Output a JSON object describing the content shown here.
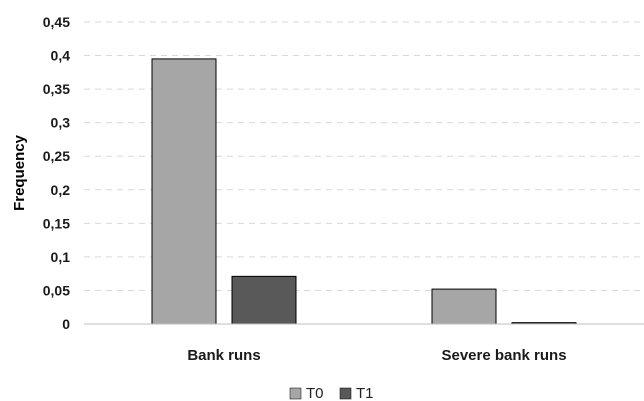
{
  "chart_data": {
    "type": "bar",
    "categories": [
      "Bank runs",
      "Severe bank runs"
    ],
    "series": [
      {
        "name": "T0",
        "values": [
          0.395,
          0.052
        ],
        "color": "#a6a6a6"
      },
      {
        "name": "T1",
        "values": [
          0.071,
          0.002
        ],
        "color": "#595959"
      }
    ],
    "ylabel": "Frequency",
    "xlabel": "",
    "ylim": [
      0,
      0.45
    ],
    "yticks": [
      0,
      0.05,
      0.1,
      0.15,
      0.2,
      0.25,
      0.3,
      0.35,
      0.4,
      0.45
    ],
    "ytick_labels": [
      "0",
      "0,05",
      "0,1",
      "0,15",
      "0,2",
      "0,25",
      "0,3",
      "0,35",
      "0,4",
      "0,45"
    ],
    "grid": true,
    "legend_position": "bottom"
  }
}
